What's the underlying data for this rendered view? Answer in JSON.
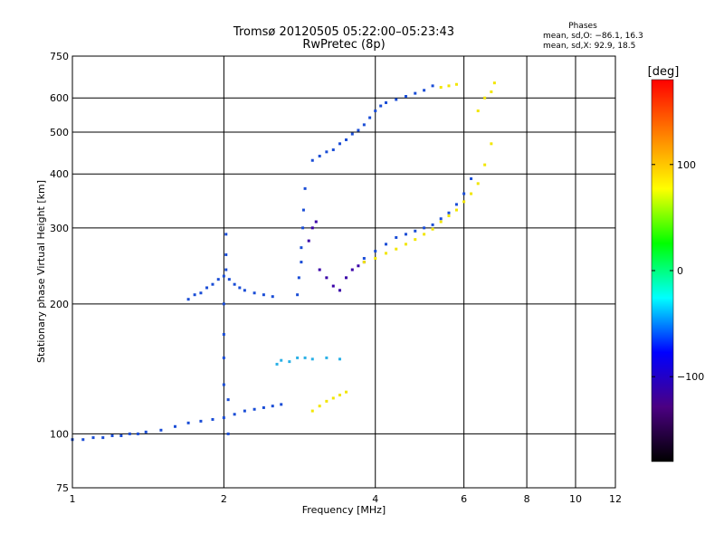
{
  "chart_data": {
    "type": "scatter",
    "title": "Tromsø 20120505 05:22:00–05:23:43",
    "subtitle": "RwPretec (8p)",
    "xlabel": "Frequency [MHz]",
    "ylabel": "Stationary phase Virtual Height [km]",
    "x_scale": "log",
    "y_scale": "log",
    "xlim": [
      1,
      12
    ],
    "ylim": [
      75,
      750
    ],
    "x_ticks": [
      1,
      2,
      4,
      6,
      8,
      10,
      12
    ],
    "y_ticks": [
      75,
      100,
      200,
      300,
      400,
      500,
      600,
      750
    ],
    "grid": true,
    "phases_info": {
      "heading": "Phases",
      "line_o": "mean, sd,O: −86.1, 16.3",
      "line_x": "mean, sd,X:  92.9, 18.5"
    },
    "colorbar": {
      "label": "[deg]",
      "ticks": [
        100,
        0,
        -100
      ],
      "tick_labels": [
        "100",
        "0",
        "−100"
      ],
      "range": [
        -180,
        180
      ],
      "colors": [
        "#000000",
        "#4b0082",
        "#0000ff",
        "#00ffff",
        "#00ff00",
        "#ffff00",
        "#ff8000",
        "#ff0000"
      ]
    },
    "series": [
      {
        "color": "#1a4dd6",
        "x": [
          1.0,
          1.05,
          1.1,
          1.15,
          1.2,
          1.25,
          1.3,
          1.35,
          1.4,
          1.5,
          1.6,
          1.7,
          1.8,
          1.9,
          2.0,
          2.1,
          2.2,
          2.3,
          2.4,
          2.5,
          2.6
        ],
        "y": [
          97,
          97,
          98,
          98,
          99,
          99,
          100,
          100,
          101,
          102,
          104,
          106,
          107,
          108,
          109,
          111,
          113,
          114,
          115,
          116,
          117
        ]
      },
      {
        "color": "#1a4dd6",
        "x": [
          1.7,
          1.75,
          1.8,
          1.85,
          1.9,
          1.95,
          2.0,
          2.05,
          2.1,
          2.15,
          2.2,
          2.3,
          2.4,
          2.5
        ],
        "y": [
          205,
          210,
          212,
          218,
          222,
          228,
          232,
          228,
          222,
          218,
          215,
          212,
          210,
          208
        ]
      },
      {
        "color": "#1a4dd6",
        "x": [
          2.0,
          2.0,
          2.0,
          2.0,
          2.02,
          2.02,
          2.02,
          2.04,
          2.04
        ],
        "y": [
          130,
          150,
          170,
          200,
          240,
          260,
          290,
          100,
          120
        ]
      },
      {
        "color": "#1a4dd6",
        "x": [
          2.8,
          2.82,
          2.85,
          2.85,
          2.87,
          2.88,
          2.9
        ],
        "y": [
          210,
          230,
          250,
          270,
          300,
          330,
          370
        ]
      },
      {
        "color": "#2ab0e6",
        "x": [
          2.55,
          2.6,
          2.7,
          2.8,
          2.9,
          3.0,
          3.2,
          3.4
        ],
        "y": [
          145,
          148,
          147,
          150,
          150,
          149,
          150,
          149
        ]
      },
      {
        "color": "#3a00a8",
        "x": [
          2.95,
          3.0,
          3.05,
          3.1,
          3.2,
          3.3,
          3.4,
          3.5,
          3.6,
          3.7,
          3.8
        ],
        "y": [
          280,
          300,
          310,
          240,
          230,
          220,
          215,
          230,
          240,
          245,
          250
        ]
      },
      {
        "color": "#1a4dd6",
        "x": [
          3.0,
          3.1,
          3.2,
          3.3,
          3.4,
          3.5,
          3.6,
          3.7,
          3.8,
          3.9,
          4.0,
          4.1,
          4.2,
          4.4,
          4.6,
          4.8,
          5.0,
          5.2
        ],
        "y": [
          430,
          440,
          450,
          455,
          470,
          480,
          495,
          505,
          520,
          540,
          560,
          575,
          585,
          595,
          605,
          615,
          625,
          640
        ]
      },
      {
        "color": "#1a4dd6",
        "x": [
          3.8,
          4.0,
          4.2,
          4.4,
          4.6,
          4.8,
          5.0,
          5.2,
          5.4,
          5.6,
          5.8,
          6.0,
          6.2
        ],
        "y": [
          255,
          265,
          275,
          285,
          290,
          295,
          300,
          305,
          315,
          325,
          340,
          360,
          390
        ]
      },
      {
        "color": "#f2e600",
        "x": [
          3.8,
          4.0,
          4.2,
          4.4,
          4.6,
          4.8,
          5.0,
          5.2,
          5.4,
          5.6,
          5.8,
          6.0,
          6.2,
          6.4,
          6.6,
          6.8
        ],
        "y": [
          250,
          255,
          262,
          268,
          275,
          282,
          290,
          298,
          310,
          320,
          330,
          345,
          360,
          380,
          420,
          470
        ]
      },
      {
        "color": "#f2e600",
        "x": [
          5.4,
          5.6,
          5.8,
          6.4,
          6.6,
          6.8,
          6.9
        ],
        "y": [
          635,
          640,
          645,
          560,
          600,
          620,
          650
        ]
      },
      {
        "color": "#f2e600",
        "x": [
          3.0,
          3.1,
          3.2,
          3.3,
          3.4,
          3.5
        ],
        "y": [
          113,
          116,
          119,
          121,
          123,
          125
        ]
      }
    ]
  }
}
